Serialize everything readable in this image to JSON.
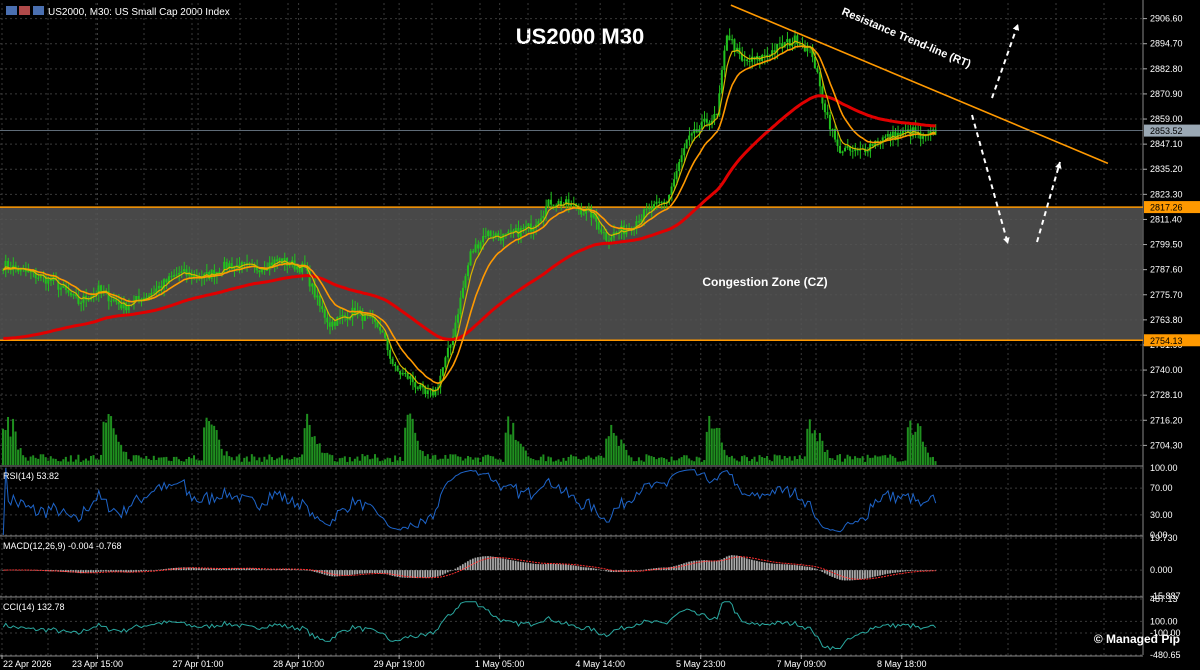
{
  "header": {
    "symbol_info": "US2000, M30:  US Small Cap 2000 Index"
  },
  "chart_title": "US2000 M30",
  "watermark": "© Managed Pip",
  "colors": {
    "background": "#000000",
    "grid": "#3a3a3a",
    "candles": "#22c01e",
    "ma_fast": "#d8b400",
    "ma_mid": "#ff9900",
    "ma_slow": "#e00000",
    "zone_fill": "#555555",
    "zone_line": "#ff9900",
    "trendline": "#ff9900",
    "volume": "#1f8f1f",
    "rsi_line": "#1e64c8",
    "macd_hist": "#aaaaaa",
    "macd_signal": "#ff3030",
    "cci_line": "#2aa8a0",
    "price_tag_bg": "#cfd8e0"
  },
  "chart_data": [
    {
      "type": "candlestick",
      "name": "price",
      "y_ticks": [
        2906.6,
        2894.7,
        2882.8,
        2870.9,
        2859.0,
        2847.1,
        2835.2,
        2823.3,
        2811.4,
        2799.5,
        2787.6,
        2775.7,
        2763.8,
        2751.9,
        2740.0,
        2728.1,
        2716.2,
        2704.3
      ],
      "ylim": [
        2695.0,
        2914.0
      ],
      "x_ticks": [
        "22 Apr 2026",
        "23 Apr 15:00",
        "27 Apr 01:00",
        "28 Apr 10:00",
        "29 Apr 19:00",
        "1 May 05:00",
        "4 May 14:00",
        "5 May 23:00",
        "7 May 09:00",
        "8 May 18:00"
      ],
      "x_tick_bar_index": [
        0,
        38,
        78,
        118,
        158,
        198,
        238,
        278,
        318,
        358
      ],
      "bar_count": 372,
      "close_anchors": [
        [
          0,
          2790
        ],
        [
          10,
          2786
        ],
        [
          20,
          2782
        ],
        [
          30,
          2772
        ],
        [
          38,
          2778
        ],
        [
          48,
          2770
        ],
        [
          58,
          2776
        ],
        [
          70,
          2786
        ],
        [
          80,
          2784
        ],
        [
          90,
          2790
        ],
        [
          100,
          2788
        ],
        [
          110,
          2792
        ],
        [
          120,
          2788
        ],
        [
          126,
          2770
        ],
        [
          130,
          2762
        ],
        [
          140,
          2768
        ],
        [
          150,
          2760
        ],
        [
          156,
          2740
        ],
        [
          162,
          2736
        ],
        [
          168,
          2728
        ],
        [
          172,
          2730
        ],
        [
          178,
          2752
        ],
        [
          186,
          2795
        ],
        [
          192,
          2805
        ],
        [
          200,
          2803
        ],
        [
          210,
          2808
        ],
        [
          218,
          2820
        ],
        [
          226,
          2818
        ],
        [
          234,
          2814
        ],
        [
          240,
          2803
        ],
        [
          248,
          2807
        ],
        [
          256,
          2815
        ],
        [
          264,
          2820
        ],
        [
          272,
          2848
        ],
        [
          280,
          2858
        ],
        [
          284,
          2860
        ],
        [
          288,
          2900
        ],
        [
          294,
          2886
        ],
        [
          300,
          2887
        ],
        [
          310,
          2894
        ],
        [
          316,
          2897
        ],
        [
          322,
          2890
        ],
        [
          326,
          2868
        ],
        [
          332,
          2845
        ],
        [
          340,
          2843
        ],
        [
          348,
          2849
        ],
        [
          354,
          2851
        ],
        [
          362,
          2853
        ],
        [
          366,
          2849
        ],
        [
          371,
          2853
        ]
      ],
      "current_price": "2853.52",
      "zone": {
        "upper": 2817.26,
        "lower": 2754.13,
        "upper_label": "2817.26",
        "lower_label": "2754.13",
        "label": "Congestion Zone (CZ)"
      },
      "trendline": {
        "label": "Resistance Trend-line (RT)",
        "start": [
          290,
          2913
        ],
        "end": [
          440,
          2838
        ]
      },
      "moving_averages": [
        "fast",
        "mid",
        "slow"
      ]
    },
    {
      "type": "line",
      "name": "RSI(14)",
      "label": "RSI(14) 53.82",
      "y_ticks": [
        "100.00",
        "70.00",
        "30.00",
        "0.00"
      ],
      "ylim": [
        0,
        100
      ]
    },
    {
      "type": "bar",
      "name": "MACD(12,26,9)",
      "label": "MACD(12,26,9) -0.004 -0.768",
      "y_ticks": [
        "19.730",
        "0.000",
        "-15.887"
      ],
      "ylim": [
        -15.887,
        19.73
      ]
    },
    {
      "type": "line",
      "name": "CCI(14)",
      "label": "CCI(14) 132.78",
      "y_ticks": [
        "487.13",
        "100.00",
        "-100.00",
        "-480.65"
      ],
      "ylim": [
        -480.65,
        487.13
      ]
    }
  ]
}
